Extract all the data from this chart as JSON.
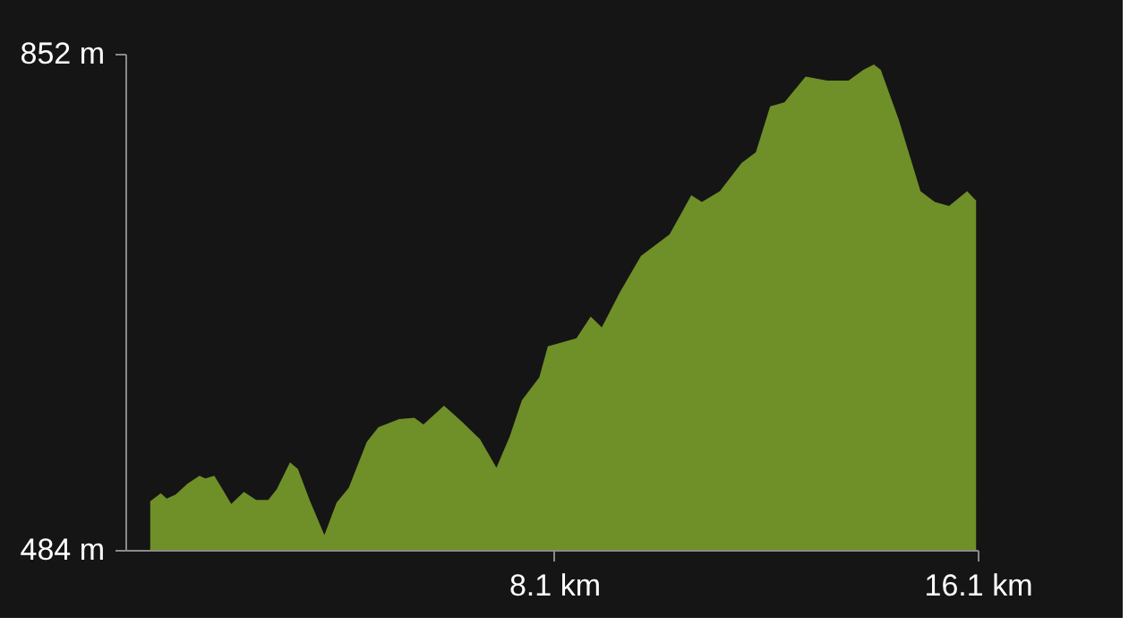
{
  "chart_data": {
    "type": "area",
    "xlim": [
      0,
      16.1
    ],
    "ylim": [
      484,
      852
    ],
    "xticks": [
      {
        "value": 8.1,
        "label": "8.1 km"
      },
      {
        "value": 16.1,
        "label": "16.1 km"
      }
    ],
    "yticks": [
      {
        "value": 484,
        "label": "484 m"
      },
      {
        "value": 852,
        "label": "852 m"
      }
    ],
    "x": [
      0.47,
      0.67,
      0.78,
      0.95,
      1.17,
      1.4,
      1.51,
      1.68,
      1.85,
      2.0,
      2.24,
      2.47,
      2.7,
      2.86,
      3.11,
      3.26,
      3.48,
      3.76,
      3.99,
      4.22,
      4.56,
      4.78,
      5.17,
      5.46,
      5.63,
      6.02,
      6.36,
      6.7,
      7.01,
      7.26,
      7.49,
      7.82,
      7.98,
      8.52,
      8.79,
      9.0,
      9.34,
      9.74,
      10.28,
      10.69,
      10.89,
      11.23,
      11.64,
      11.91,
      12.18,
      12.45,
      12.85,
      13.26,
      13.66,
      13.94,
      14.14,
      14.27,
      14.61,
      15.02,
      15.29,
      15.56,
      15.9,
      16.07
    ],
    "series": [
      {
        "color": "#6f8f28",
        "values": [
          520,
          526,
          522,
          525,
          533,
          539,
          537,
          539,
          528,
          518,
          527,
          521,
          521,
          529,
          549,
          544,
          521,
          495,
          519,
          530,
          564,
          575,
          581,
          582,
          577,
          591,
          579,
          566,
          545,
          568,
          595,
          612,
          635,
          641,
          657,
          649,
          675,
          702,
          718,
          747,
          742,
          750,
          771,
          779,
          813,
          816,
          835,
          832,
          832,
          840,
          844,
          840,
          803,
          750,
          742,
          739,
          750,
          743
        ]
      }
    ]
  }
}
